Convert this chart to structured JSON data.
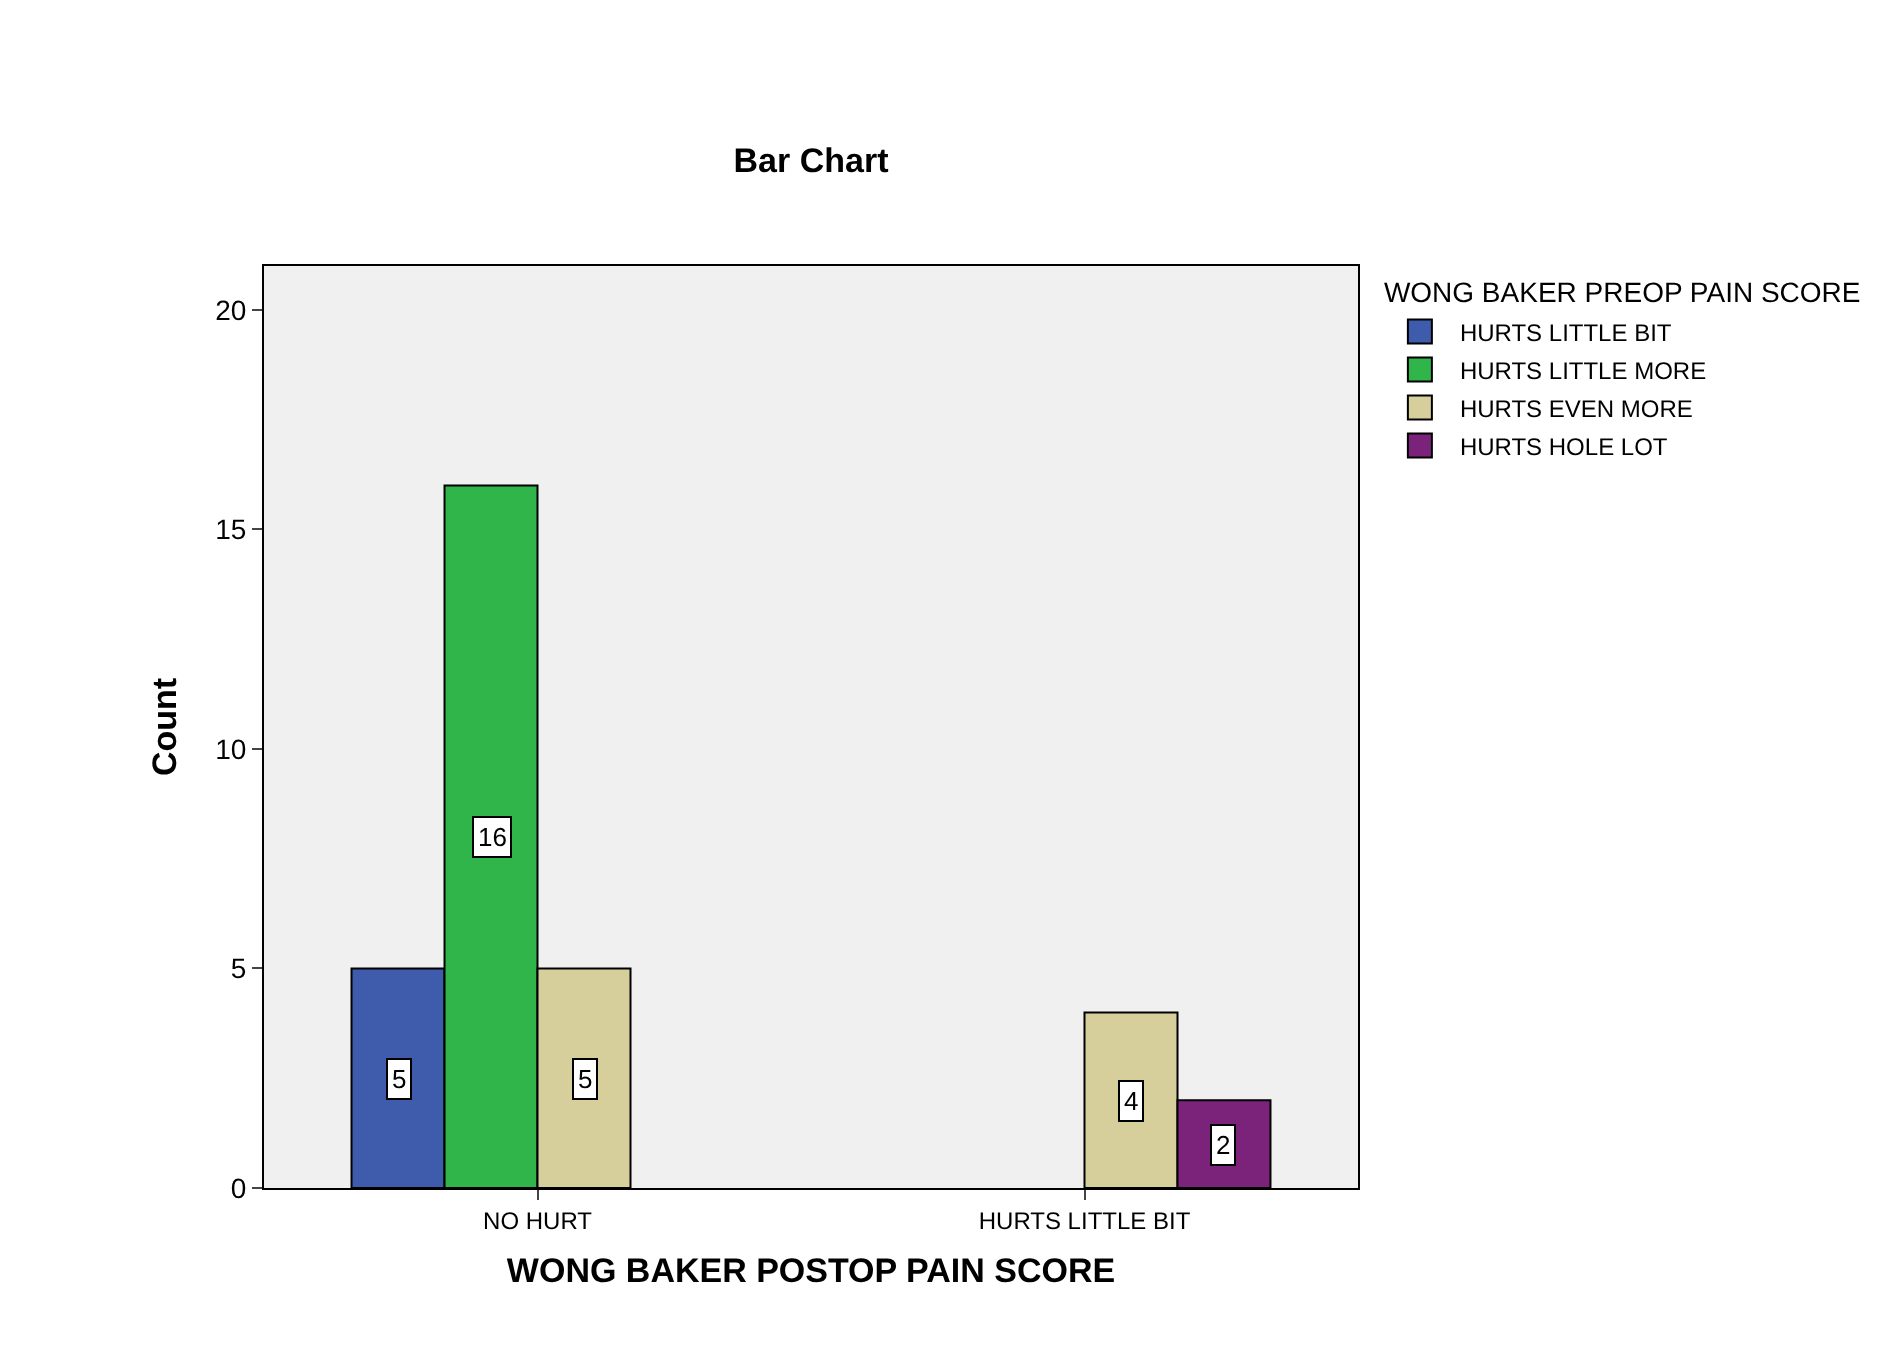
{
  "chart_data": {
    "type": "bar",
    "title": "Bar Chart",
    "xlabel": "WONG BAKER POSTOP PAIN SCORE",
    "ylabel": "Count",
    "legend_title": "WONG BAKER PREOP PAIN SCORE",
    "categories": [
      "NO HURT",
      "HURTS LITTLE BIT"
    ],
    "series": [
      {
        "name": "HURTS LITTLE BIT",
        "color": "#3f5bab",
        "values": [
          5,
          null
        ]
      },
      {
        "name": "HURTS LITTLE MORE",
        "color": "#2fb54a",
        "values": [
          16,
          null
        ]
      },
      {
        "name": "HURTS EVEN MORE",
        "color": "#d6cf9c",
        "values": [
          5,
          4
        ]
      },
      {
        "name": "HURTS HOLE LOT",
        "color": "#7b237b",
        "values": [
          null,
          2
        ]
      }
    ],
    "ylim": [
      0,
      21
    ],
    "yticks": [
      0,
      5,
      10,
      15,
      20
    ],
    "grid": false,
    "legend": "top right",
    "data_labels": true
  }
}
